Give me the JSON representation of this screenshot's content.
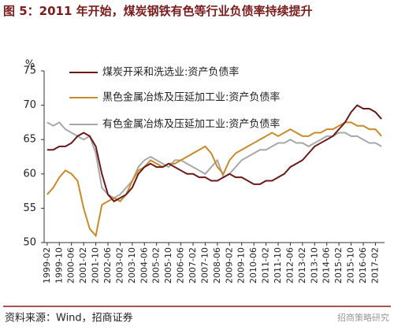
{
  "chart_data": {
    "type": "line",
    "title": "图 5：2011 年开始，煤炭钢铁有色等行业负债率持续提升",
    "y_unit": "%",
    "source": "资料来源：Wind，招商证券",
    "watermark": "招商策略研究",
    "categories": [
      "1999-02",
      null,
      "1999-10",
      null,
      "2000-06",
      null,
      "2001-02",
      null,
      "2001-10",
      null,
      "2002-06",
      null,
      "2003-02",
      null,
      "2003-10",
      null,
      "2004-06",
      null,
      "2005-02",
      null,
      "2005-10",
      null,
      "2006-06",
      null,
      "2007-02",
      null,
      "2007-10",
      null,
      "2008-06",
      null,
      "2009-02",
      null,
      "2009-10",
      null,
      "2010-06",
      null,
      "2011-02",
      null,
      "2011-10",
      null,
      "2012-06",
      null,
      "2013-02",
      null,
      "2013-10",
      null,
      "2014-06",
      null,
      "2015-02",
      null,
      "2015-10",
      null,
      "2016-06",
      null,
      "2017-02",
      null
    ],
    "series": [
      {
        "name": "煤炭开采和洗选业:资产负债率",
        "color": "#6b1a1a",
        "values": [
          63.5,
          63.5,
          64,
          64,
          64.5,
          65.5,
          66,
          65.5,
          64,
          60,
          57,
          56,
          56.5,
          57,
          58,
          60,
          61,
          61.5,
          61,
          61,
          61.5,
          61,
          60.5,
          60,
          60,
          59.5,
          59.5,
          59,
          59,
          59.5,
          60,
          59.5,
          59.5,
          59,
          58.5,
          58.5,
          59,
          59,
          59.5,
          60,
          61,
          61.5,
          62,
          63,
          64,
          64.5,
          65,
          65.5,
          66.5,
          67.5,
          69,
          70,
          69.5,
          69.5,
          69,
          68
        ]
      },
      {
        "name": "黑色金属冶炼及压延加工业:资产负债率",
        "color": "#c98a2a",
        "values": [
          57,
          58,
          59.5,
          60.5,
          60,
          59,
          55,
          52,
          51,
          55.5,
          56,
          56.5,
          56,
          57,
          59,
          60.5,
          61,
          62,
          61.5,
          61,
          61.5,
          61.5,
          62,
          62.5,
          63,
          63.5,
          64,
          63,
          61,
          60,
          62,
          63,
          63.5,
          64,
          64.5,
          65,
          65.5,
          66,
          65.5,
          66,
          66.5,
          66,
          65.5,
          65.5,
          66,
          66,
          66.5,
          66.5,
          67,
          67.5,
          67.5,
          67,
          67,
          66.5,
          66.5,
          65.5
        ]
      },
      {
        "name": "有色金属冶炼及压延加工业:资产负债率",
        "color": "#a8a8a8",
        "values": [
          67.5,
          67,
          67.5,
          66.5,
          66,
          65.5,
          65,
          65.5,
          63,
          58,
          57,
          56.5,
          57,
          58,
          59,
          61,
          62,
          62.5,
          62,
          61.5,
          61,
          62,
          62,
          61.5,
          61,
          60.5,
          60,
          61,
          62,
          59.5,
          60,
          61,
          62,
          62.5,
          63,
          63.5,
          63.5,
          64,
          64.5,
          64.5,
          65,
          64.5,
          64.5,
          64,
          64.5,
          65,
          65.5,
          65.5,
          66,
          66,
          65.5,
          65.5,
          65,
          64.5,
          64.5,
          64
        ]
      }
    ],
    "ylim": [
      50,
      75
    ],
    "yticks": [
      50,
      55,
      60,
      65,
      70,
      75
    ]
  }
}
